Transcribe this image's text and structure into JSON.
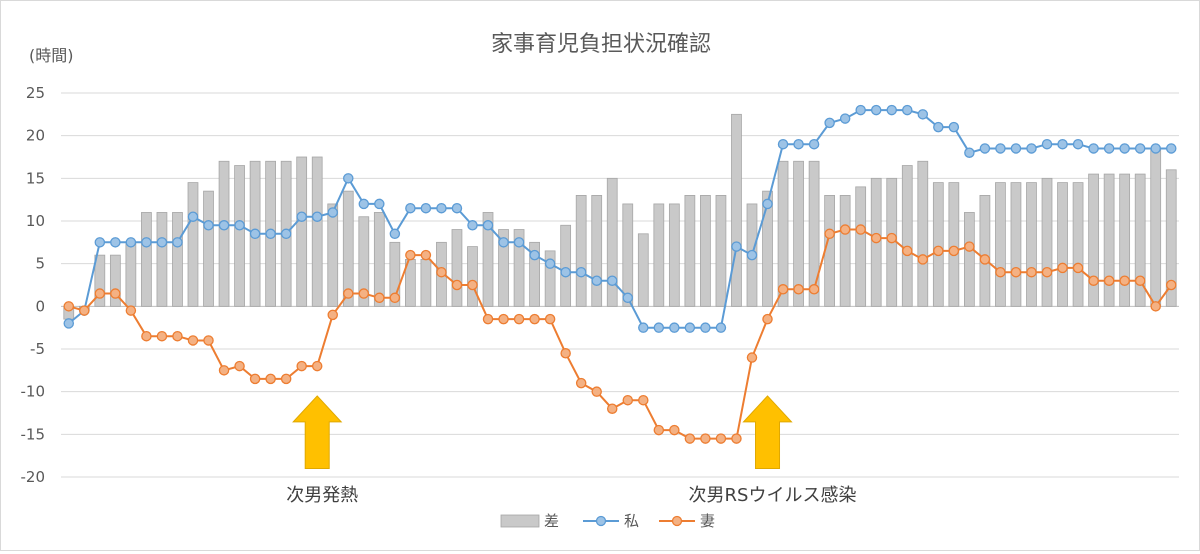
{
  "chart_data": {
    "type": "bar+line",
    "title": "家事育児負担状況確認",
    "ylabel": "(時間)",
    "ylim": [
      -20,
      25
    ],
    "yticks": [
      25,
      20,
      15,
      10,
      5,
      0,
      -5,
      -10,
      -15,
      -20
    ],
    "grid": true,
    "legend_position": "bottom",
    "series": [
      {
        "name": "差",
        "kind": "bar",
        "color": "#c9c9c9",
        "values": [
          -1.5,
          -0.5,
          6,
          6,
          7.5,
          11,
          11,
          11,
          14.5,
          13.5,
          17,
          16.5,
          17,
          17,
          17,
          17.5,
          17.5,
          12,
          13.5,
          10.5,
          11,
          7.5,
          5.5,
          5.5,
          7.5,
          9,
          7,
          11,
          9,
          9,
          7.5,
          6.5,
          9.5,
          13,
          13,
          15,
          12,
          8.5,
          12,
          12,
          13,
          13,
          13,
          22.5,
          12,
          13.5,
          17,
          17,
          17,
          13,
          13,
          14,
          15,
          15,
          16.5,
          17,
          14.5,
          14.5,
          11,
          13,
          14.5,
          14.5,
          14.5,
          15,
          14.5,
          14.5,
          15.5,
          15.5,
          15.5,
          15.5,
          18.5,
          16
        ]
      },
      {
        "name": "私",
        "kind": "line",
        "color": "#5b9bd5",
        "values": [
          -2,
          -0.5,
          7.5,
          7.5,
          7.5,
          7.5,
          7.5,
          7.5,
          10.5,
          9.5,
          9.5,
          9.5,
          8.5,
          8.5,
          8.5,
          10.5,
          10.5,
          11,
          15,
          12,
          12,
          8.5,
          11.5,
          11.5,
          11.5,
          11.5,
          9.5,
          9.5,
          7.5,
          7.5,
          6,
          5,
          4,
          4,
          3,
          3,
          1,
          -2.5,
          -2.5,
          -2.5,
          -2.5,
          -2.5,
          -2.5,
          7,
          6,
          12,
          19,
          19,
          19,
          21.5,
          22,
          23,
          23,
          23,
          23,
          22.5,
          21,
          21,
          18,
          18.5,
          18.5,
          18.5,
          18.5,
          19,
          19,
          19,
          18.5,
          18.5,
          18.5,
          18.5,
          18.5,
          18.5
        ]
      },
      {
        "name": "妻",
        "kind": "line",
        "color": "#ed7d31",
        "values": [
          0,
          -0.5,
          1.5,
          1.5,
          -0.5,
          -3.5,
          -3.5,
          -3.5,
          -4,
          -4,
          -7.5,
          -7,
          -8.5,
          -8.5,
          -8.5,
          -7,
          -7,
          -1,
          1.5,
          1.5,
          1,
          1,
          6,
          6,
          4,
          2.5,
          2.5,
          -1.5,
          -1.5,
          -1.5,
          -1.5,
          -1.5,
          -5.5,
          -9,
          -10,
          -12,
          -11,
          -11,
          -14.5,
          -14.5,
          -15.5,
          -15.5,
          -15.5,
          -15.5,
          -6,
          -1.5,
          2,
          2,
          2,
          8.5,
          9,
          9,
          8,
          8,
          6.5,
          5.5,
          6.5,
          6.5,
          7,
          5.5,
          4,
          4,
          4,
          4,
          4.5,
          4.5,
          3,
          3,
          3,
          3,
          0,
          2.5
        ]
      }
    ],
    "annotations": [
      {
        "text": "次男発熱",
        "category_index": 16,
        "color": "#ffc000"
      },
      {
        "text": "次男RSウイルス感染",
        "category_index": 45,
        "color": "#ffc000"
      }
    ]
  }
}
